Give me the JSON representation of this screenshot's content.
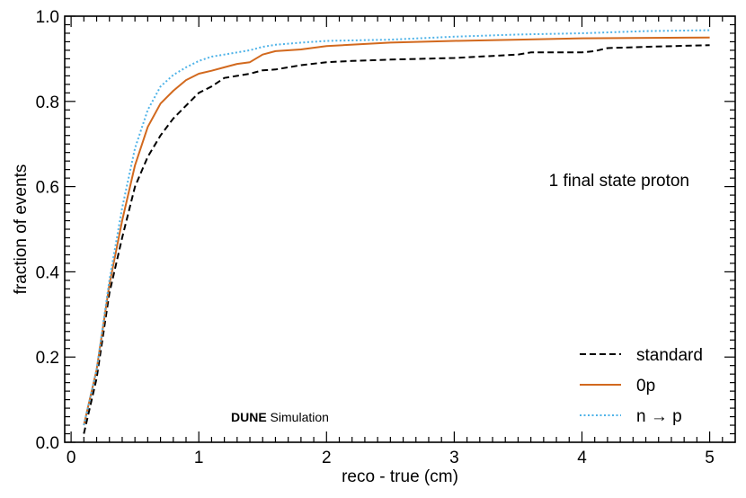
{
  "chart_data": {
    "type": "line",
    "xlabel": "reco - true (cm)",
    "ylabel": "fraction of events",
    "xlim": [
      -0.05,
      5.2
    ],
    "ylim": [
      0,
      1.0
    ],
    "xticks": [
      "0",
      "1",
      "2",
      "3",
      "4",
      "5"
    ],
    "yticks": [
      "0.0",
      "0.2",
      "0.4",
      "0.6",
      "0.8",
      "1.0"
    ],
    "annotation": "1 final state proton",
    "brand": {
      "bold": "DUNE",
      "rest": " Simulation"
    },
    "legend_position": "bottom-right",
    "series": [
      {
        "name": "standard",
        "color": "#000000",
        "style": "dashed",
        "x": [
          0.1,
          0.2,
          0.3,
          0.4,
          0.5,
          0.6,
          0.7,
          0.8,
          0.9,
          1.0,
          1.1,
          1.2,
          1.3,
          1.4,
          1.5,
          1.6,
          1.8,
          2.0,
          2.2,
          2.5,
          3.0,
          3.5,
          3.6,
          4.0,
          4.1,
          4.2,
          4.5,
          5.0
        ],
        "y": [
          0.02,
          0.15,
          0.35,
          0.48,
          0.6,
          0.67,
          0.72,
          0.76,
          0.79,
          0.82,
          0.835,
          0.855,
          0.86,
          0.865,
          0.873,
          0.875,
          0.885,
          0.892,
          0.895,
          0.898,
          0.902,
          0.91,
          0.915,
          0.915,
          0.918,
          0.925,
          0.928,
          0.932
        ]
      },
      {
        "name": "0p",
        "color": "#d2691e",
        "style": "solid",
        "x": [
          0.1,
          0.2,
          0.3,
          0.4,
          0.5,
          0.6,
          0.7,
          0.8,
          0.9,
          1.0,
          1.1,
          1.2,
          1.3,
          1.4,
          1.5,
          1.6,
          1.8,
          2.0,
          2.5,
          3.0,
          3.5,
          4.0,
          5.0
        ],
        "y": [
          0.04,
          0.17,
          0.37,
          0.52,
          0.65,
          0.74,
          0.795,
          0.825,
          0.85,
          0.865,
          0.872,
          0.88,
          0.888,
          0.892,
          0.91,
          0.918,
          0.922,
          0.93,
          0.938,
          0.942,
          0.945,
          0.948,
          0.95
        ]
      },
      {
        "name": "n → p",
        "color": "#4fb3e8",
        "style": "dotted",
        "x": [
          0.1,
          0.2,
          0.3,
          0.4,
          0.5,
          0.6,
          0.7,
          0.8,
          0.9,
          1.0,
          1.1,
          1.2,
          1.3,
          1.4,
          1.5,
          1.6,
          1.8,
          2.0,
          2.5,
          3.0,
          3.5,
          4.0,
          4.5,
          5.0
        ],
        "y": [
          0.04,
          0.17,
          0.38,
          0.55,
          0.69,
          0.78,
          0.835,
          0.862,
          0.88,
          0.895,
          0.905,
          0.91,
          0.915,
          0.92,
          0.928,
          0.933,
          0.938,
          0.942,
          0.945,
          0.952,
          0.957,
          0.96,
          0.965,
          0.967
        ]
      }
    ]
  }
}
